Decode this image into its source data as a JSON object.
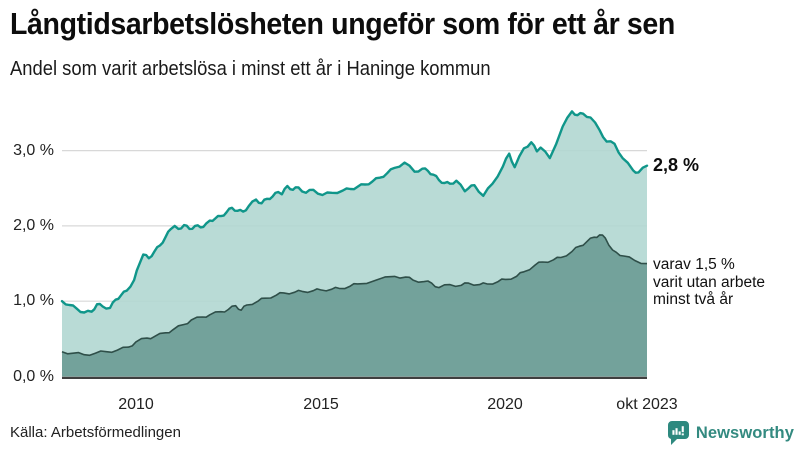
{
  "header": {
    "title": "Långtidsarbetslösheten ungeför som för ett år sen",
    "subtitle": "Andel som varit arbetslösa i minst ett år i Haninge kommun"
  },
  "annotations": {
    "end_label": "2,8 %",
    "note_line1": "varav 1,5 %",
    "note_line2": "varit utan arbete",
    "note_line3": "minst två år"
  },
  "footer": {
    "source": "Källa: Arbetsförmedlingen",
    "brand": "Newsworthy"
  },
  "colors": {
    "top_line": "#10968a",
    "top_fill": "#afd6d0",
    "bottom_line": "#2f4f49",
    "bottom_fill": "#699a93",
    "gridline": "#d8d8d8",
    "axis_line": "#3f3f3f",
    "brand_teal": "#2e897f"
  },
  "chart_data": {
    "type": "area",
    "title": "Långtidsarbetslösheten ungeför som för ett år sen",
    "subtitle": "Andel som varit arbetslösa i minst ett år i Haninge kommun",
    "x_range": [
      2008.0,
      2023.83
    ],
    "ylim": [
      0,
      3.6
    ],
    "grid": true,
    "yticks": [
      {
        "label": "3,0 %",
        "value": 3
      },
      {
        "label": "2,0 %",
        "value": 2
      },
      {
        "label": "1,0 %",
        "value": 1
      },
      {
        "label": "0,0 %",
        "value": 0
      }
    ],
    "xticks": [
      {
        "label": "2010",
        "year": 2010
      },
      {
        "label": "2015",
        "year": 2015
      },
      {
        "label": "2020",
        "year": 2020
      },
      {
        "label": "okt 2023",
        "year": 2023.83
      }
    ],
    "series": [
      {
        "name": "Arbetslösa minst ett år",
        "end_value": "2,8 %",
        "points": [
          [
            2008.0,
            1.0
          ],
          [
            2008.2,
            0.95
          ],
          [
            2008.4,
            0.9
          ],
          [
            2008.6,
            0.85
          ],
          [
            2008.8,
            0.86
          ],
          [
            2008.95,
            0.96
          ],
          [
            2009.1,
            0.93
          ],
          [
            2009.3,
            0.91
          ],
          [
            2009.45,
            1.02
          ],
          [
            2009.6,
            1.08
          ],
          [
            2009.75,
            1.14
          ],
          [
            2009.95,
            1.28
          ],
          [
            2010.1,
            1.5
          ],
          [
            2010.2,
            1.62
          ],
          [
            2010.35,
            1.57
          ],
          [
            2010.5,
            1.66
          ],
          [
            2010.65,
            1.74
          ],
          [
            2010.8,
            1.85
          ],
          [
            2010.95,
            1.96
          ],
          [
            2011.05,
            2.0
          ],
          [
            2011.15,
            1.96
          ],
          [
            2011.3,
            2.01
          ],
          [
            2011.45,
            1.96
          ],
          [
            2011.6,
            2.0
          ],
          [
            2011.75,
            1.98
          ],
          [
            2011.9,
            2.03
          ],
          [
            2012.0,
            2.07
          ],
          [
            2012.15,
            2.1
          ],
          [
            2012.3,
            2.13
          ],
          [
            2012.45,
            2.18
          ],
          [
            2012.6,
            2.24
          ],
          [
            2012.75,
            2.2
          ],
          [
            2012.9,
            2.19
          ],
          [
            2013.05,
            2.26
          ],
          [
            2013.25,
            2.35
          ],
          [
            2013.4,
            2.3
          ],
          [
            2013.55,
            2.36
          ],
          [
            2013.7,
            2.39
          ],
          [
            2013.85,
            2.45
          ],
          [
            2013.95,
            2.42
          ],
          [
            2014.1,
            2.53
          ],
          [
            2014.25,
            2.48
          ],
          [
            2014.4,
            2.51
          ],
          [
            2014.6,
            2.44
          ],
          [
            2014.8,
            2.48
          ],
          [
            2015.05,
            2.41
          ],
          [
            2015.3,
            2.44
          ],
          [
            2015.6,
            2.47
          ],
          [
            2015.8,
            2.49
          ],
          [
            2016.0,
            2.52
          ],
          [
            2016.2,
            2.55
          ],
          [
            2016.4,
            2.59
          ],
          [
            2016.6,
            2.64
          ],
          [
            2016.8,
            2.7
          ],
          [
            2017.0,
            2.77
          ],
          [
            2017.27,
            2.84
          ],
          [
            2017.54,
            2.72
          ],
          [
            2017.75,
            2.76
          ],
          [
            2017.9,
            2.73
          ],
          [
            2018.05,
            2.68
          ],
          [
            2018.2,
            2.61
          ],
          [
            2018.35,
            2.57
          ],
          [
            2018.5,
            2.56
          ],
          [
            2018.67,
            2.6
          ],
          [
            2018.9,
            2.46
          ],
          [
            2019.0,
            2.5
          ],
          [
            2019.16,
            2.54
          ],
          [
            2019.4,
            2.4
          ],
          [
            2019.65,
            2.56
          ],
          [
            2019.93,
            2.79
          ],
          [
            2020.1,
            2.96
          ],
          [
            2020.25,
            2.78
          ],
          [
            2020.5,
            3.03
          ],
          [
            2020.7,
            3.11
          ],
          [
            2020.85,
            2.99
          ],
          [
            2020.95,
            3.04
          ],
          [
            2021.2,
            2.9
          ],
          [
            2021.55,
            3.32
          ],
          [
            2021.8,
            3.52
          ],
          [
            2021.95,
            3.47
          ],
          [
            2022.1,
            3.49
          ],
          [
            2022.3,
            3.44
          ],
          [
            2022.55,
            3.27
          ],
          [
            2022.74,
            3.12
          ],
          [
            2022.95,
            3.09
          ],
          [
            2023.17,
            2.9
          ],
          [
            2023.45,
            2.74
          ],
          [
            2023.6,
            2.71
          ],
          [
            2023.83,
            2.8
          ]
        ]
      },
      {
        "name": "varav utan arbete minst två år",
        "end_value": "1,5 %",
        "points": [
          [
            2008.0,
            0.33
          ],
          [
            2008.3,
            0.31
          ],
          [
            2008.6,
            0.29
          ],
          [
            2008.9,
            0.31
          ],
          [
            2009.2,
            0.33
          ],
          [
            2009.5,
            0.35
          ],
          [
            2009.8,
            0.39
          ],
          [
            2010.0,
            0.46
          ],
          [
            2010.3,
            0.51
          ],
          [
            2010.5,
            0.53
          ],
          [
            2010.8,
            0.58
          ],
          [
            2011.0,
            0.62
          ],
          [
            2011.3,
            0.69
          ],
          [
            2011.5,
            0.75
          ],
          [
            2011.8,
            0.79
          ],
          [
            2012.0,
            0.82
          ],
          [
            2012.3,
            0.86
          ],
          [
            2012.5,
            0.89
          ],
          [
            2012.7,
            0.94
          ],
          [
            2012.85,
            0.88
          ],
          [
            2013.0,
            0.95
          ],
          [
            2013.3,
            1.0
          ],
          [
            2013.5,
            1.04
          ],
          [
            2013.8,
            1.08
          ],
          [
            2014.0,
            1.11
          ],
          [
            2014.3,
            1.12
          ],
          [
            2014.5,
            1.13
          ],
          [
            2014.8,
            1.14
          ],
          [
            2015.0,
            1.15
          ],
          [
            2015.3,
            1.16
          ],
          [
            2015.5,
            1.17
          ],
          [
            2015.8,
            1.2
          ],
          [
            2016.0,
            1.23
          ],
          [
            2016.5,
            1.28
          ],
          [
            2017.0,
            1.33
          ],
          [
            2017.3,
            1.32
          ],
          [
            2017.5,
            1.28
          ],
          [
            2017.8,
            1.26
          ],
          [
            2018.0,
            1.24
          ],
          [
            2018.2,
            1.18
          ],
          [
            2018.5,
            1.22
          ],
          [
            2018.8,
            1.21
          ],
          [
            2019.0,
            1.24
          ],
          [
            2019.3,
            1.22
          ],
          [
            2019.5,
            1.23
          ],
          [
            2019.8,
            1.26
          ],
          [
            2020.0,
            1.29
          ],
          [
            2020.3,
            1.33
          ],
          [
            2020.5,
            1.39
          ],
          [
            2020.8,
            1.48
          ],
          [
            2021.0,
            1.52
          ],
          [
            2021.3,
            1.55
          ],
          [
            2021.5,
            1.58
          ],
          [
            2021.8,
            1.66
          ],
          [
            2022.0,
            1.73
          ],
          [
            2022.2,
            1.79
          ],
          [
            2022.4,
            1.85
          ],
          [
            2022.55,
            1.88
          ],
          [
            2022.7,
            1.84
          ],
          [
            2022.9,
            1.68
          ],
          [
            2023.0,
            1.65
          ],
          [
            2023.2,
            1.6
          ],
          [
            2023.5,
            1.54
          ],
          [
            2023.83,
            1.5
          ]
        ]
      }
    ]
  }
}
